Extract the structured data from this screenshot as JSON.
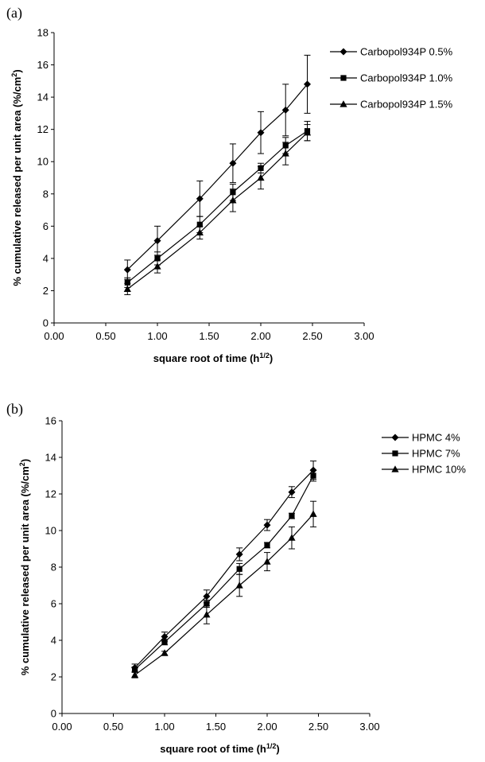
{
  "chart_data": [
    {
      "type": "line",
      "panel_label": "(a)",
      "xlabel": "square root of time (h",
      "xlabel_sup": "1/2",
      "xlabel_end": ")",
      "ylabel": "% cumulative released per unit area (%/cm",
      "ylabel_sup": "2",
      "ylabel_end": ")",
      "xlim": [
        0,
        3
      ],
      "ylim": [
        0,
        18
      ],
      "x_ticks": [
        "0.00",
        "0.50",
        "1.00",
        "1.50",
        "2.00",
        "2.50",
        "3.00"
      ],
      "y_ticks": [
        "0",
        "2",
        "4",
        "6",
        "8",
        "10",
        "12",
        "14",
        "16",
        "18"
      ],
      "x_tick_values": [
        0,
        0.5,
        1,
        1.5,
        2,
        2.5,
        3
      ],
      "y_tick_values": [
        0,
        2,
        4,
        6,
        8,
        10,
        12,
        14,
        16,
        18
      ],
      "legend_placement": "top-right",
      "x": [
        0.71,
        1.0,
        1.41,
        1.73,
        2.0,
        2.24,
        2.45
      ],
      "series": [
        {
          "name": "Carbopol934P 0.5%",
          "marker": "diamond",
          "values": [
            3.3,
            5.1,
            7.7,
            9.9,
            11.8,
            13.2,
            14.8
          ],
          "errors": [
            0.6,
            0.9,
            1.1,
            1.2,
            1.3,
            1.6,
            1.8
          ]
        },
        {
          "name": "Carbopol934P 1.0%",
          "marker": "square",
          "values": [
            2.5,
            4.0,
            6.1,
            8.1,
            9.6,
            11.0,
            11.9
          ],
          "errors": [
            0.3,
            0.4,
            0.5,
            0.5,
            0.3,
            0.5,
            0.6
          ]
        },
        {
          "name": "Carbopol934P 1.5%",
          "marker": "triangle",
          "values": [
            2.1,
            3.5,
            5.6,
            7.6,
            9.0,
            10.5,
            11.8
          ],
          "errors": [
            0.35,
            0.4,
            0.4,
            0.7,
            0.7,
            0.7,
            0.5
          ]
        }
      ]
    },
    {
      "type": "line",
      "panel_label": "(b)",
      "xlabel": "square root of time (h",
      "xlabel_sup": "1/2",
      "xlabel_end": ")",
      "ylabel": "% cumulative released per unit area (%/cm",
      "ylabel_sup": "2",
      "ylabel_end": ")",
      "xlim": [
        0,
        3
      ],
      "ylim": [
        0,
        16
      ],
      "x_ticks": [
        "0.00",
        "0.50",
        "1.00",
        "1.50",
        "2.00",
        "2.50",
        "3.00"
      ],
      "y_ticks": [
        "0",
        "2",
        "4",
        "6",
        "8",
        "10",
        "12",
        "14",
        "16"
      ],
      "x_tick_values": [
        0,
        0.5,
        1,
        1.5,
        2,
        2.5,
        3
      ],
      "y_tick_values": [
        0,
        2,
        4,
        6,
        8,
        10,
        12,
        14,
        16
      ],
      "legend_placement": "top-right",
      "x": [
        0.71,
        1.0,
        1.41,
        1.73,
        2.0,
        2.24,
        2.45
      ],
      "series": [
        {
          "name": "HPMC 4%",
          "marker": "diamond",
          "values": [
            2.5,
            4.2,
            6.4,
            8.7,
            10.3,
            12.1,
            13.3
          ],
          "errors": [
            0.2,
            0.25,
            0.35,
            0.35,
            0.3,
            0.3,
            0.5
          ]
        },
        {
          "name": "HPMC 7%",
          "marker": "square",
          "values": [
            2.4,
            3.9,
            6.0,
            7.9,
            9.2,
            10.8,
            13.0
          ],
          "errors": [
            0.15,
            0.15,
            0.2,
            0.3,
            0.15,
            0.15,
            0.3
          ]
        },
        {
          "name": "HPMC 10%",
          "marker": "triangle",
          "values": [
            2.1,
            3.3,
            5.4,
            7.0,
            8.3,
            9.6,
            10.9
          ],
          "errors": [
            0.15,
            0.1,
            0.5,
            0.6,
            0.5,
            0.6,
            0.7
          ]
        }
      ]
    }
  ]
}
